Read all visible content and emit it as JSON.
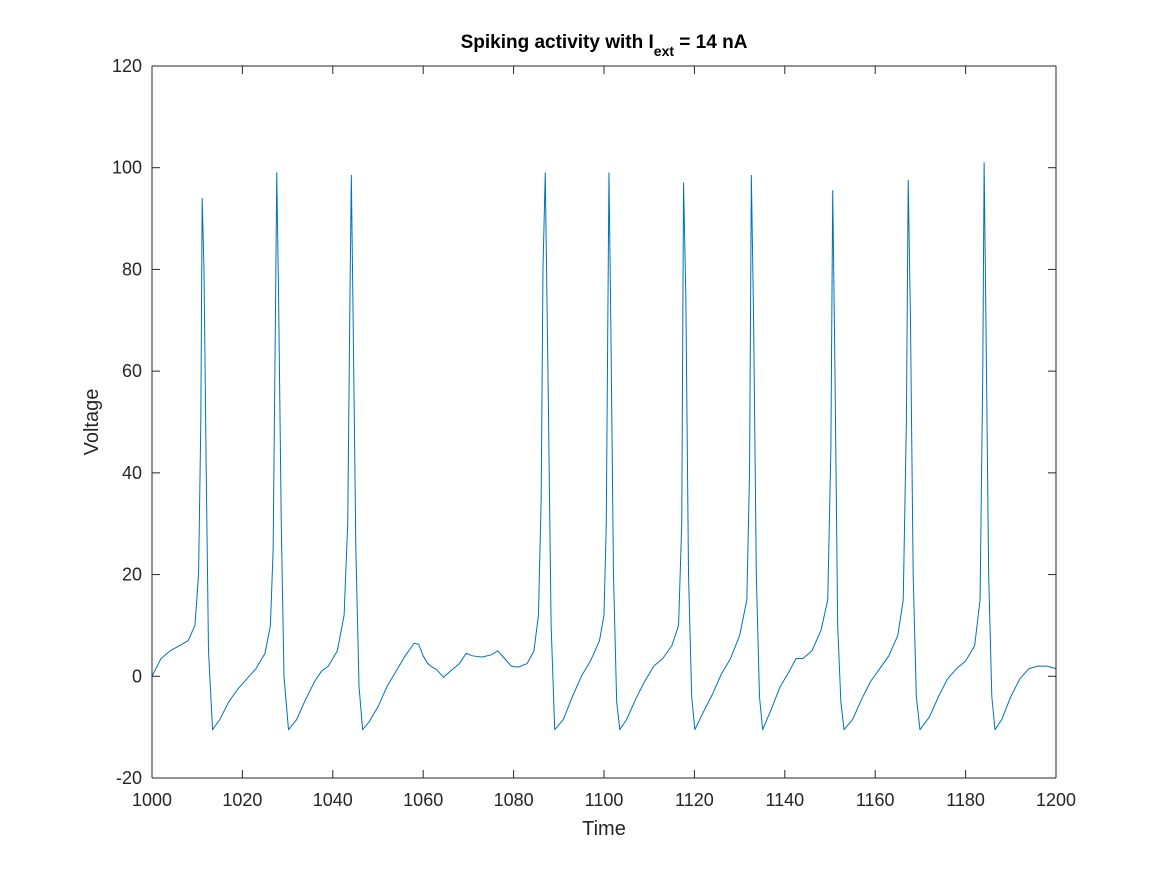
{
  "chart_data": {
    "type": "line",
    "title": {
      "prefix": "Spiking activity with I",
      "subscript": "ext",
      "suffix": " = 14 nA"
    },
    "xlabel": "Time",
    "ylabel": "Voltage",
    "xlim": [
      1000,
      1200
    ],
    "ylim": [
      -20,
      120
    ],
    "xticks": [
      1000,
      1020,
      1040,
      1060,
      1080,
      1100,
      1120,
      1140,
      1160,
      1180,
      1200
    ],
    "yticks": [
      -20,
      0,
      20,
      40,
      60,
      80,
      100,
      120
    ],
    "grid": false,
    "legend": "none",
    "line_color": "#0072BD",
    "axis_color": "#262626",
    "series": [
      {
        "x": [
          1000,
          1002,
          1004,
          1006,
          1008,
          1009.5,
          1010.3,
          1010.8,
          1011.1,
          1011.5,
          1012,
          1012.5,
          1013.4,
          1015,
          1017,
          1019,
          1021,
          1023,
          1025,
          1026.2,
          1026.8,
          1027.3,
          1027.6,
          1028,
          1028.6,
          1029.2,
          1030.2,
          1032,
          1034,
          1036,
          1037.5,
          1039,
          1041,
          1042.5,
          1043.3,
          1043.8,
          1044.1,
          1044.5,
          1045.1,
          1045.8,
          1046.6,
          1048,
          1050,
          1052,
          1054,
          1056,
          1058,
          1059,
          1060,
          1061,
          1062,
          1063,
          1064.5,
          1066,
          1068,
          1069.5,
          1071,
          1073,
          1075,
          1076.5,
          1078,
          1079.5,
          1081,
          1083,
          1084.5,
          1085.5,
          1086.1,
          1086.5,
          1087,
          1087.6,
          1088.3,
          1089.1,
          1091,
          1093,
          1095,
          1097,
          1099,
          1100,
          1100.5,
          1101.1,
          1101.5,
          1102.1,
          1102.8,
          1103.5,
          1105,
          1107,
          1109,
          1111,
          1113,
          1115,
          1116.5,
          1117.2,
          1117.6,
          1118.1,
          1118.7,
          1119.4,
          1120.1,
          1122,
          1124,
          1126,
          1128,
          1130,
          1131.6,
          1132.2,
          1132.6,
          1133.1,
          1133.7,
          1134.4,
          1135.1,
          1137,
          1139,
          1141,
          1142.5,
          1144,
          1146,
          1148,
          1149.5,
          1150.2,
          1150.6,
          1151.1,
          1151.7,
          1152.4,
          1153.1,
          1155,
          1157,
          1159,
          1161,
          1163,
          1165,
          1166.2,
          1166.9,
          1167.3,
          1167.8,
          1168.4,
          1169.1,
          1169.9,
          1172,
          1174,
          1176,
          1178,
          1180,
          1182,
          1183.2,
          1183.8,
          1184.1,
          1184.5,
          1185.1,
          1185.8,
          1186.5,
          1188,
          1190,
          1192,
          1194,
          1196,
          1198,
          1200
        ],
        "y": [
          0,
          3.5,
          5,
          6,
          7,
          10,
          20,
          50,
          94,
          80,
          40,
          5,
          -10.5,
          -8.5,
          -5,
          -2.5,
          -0.5,
          1.5,
          4.5,
          10,
          25,
          70,
          99,
          75,
          30,
          0,
          -10.5,
          -8.5,
          -4.5,
          -1,
          1,
          2,
          5,
          12,
          30,
          75,
          98.5,
          70,
          25,
          -2,
          -10.5,
          -9,
          -6,
          -2,
          1,
          4,
          6.5,
          6.3,
          4,
          2.5,
          1.8,
          1.3,
          -0.2,
          1,
          2.5,
          4.5,
          4,
          3.8,
          4.2,
          5,
          3.5,
          2,
          1.8,
          2.5,
          5,
          12,
          35,
          80,
          99,
          60,
          10,
          -10.5,
          -8.5,
          -4,
          0,
          3,
          7,
          12,
          30,
          99,
          70,
          20,
          -5,
          -10.5,
          -8.5,
          -4.5,
          -1,
          2,
          3.5,
          6,
          10,
          30,
          97,
          75,
          20,
          -4,
          -10.5,
          -7,
          -3.5,
          0.5,
          3.5,
          8,
          15,
          40,
          98.5,
          70,
          20,
          -4,
          -10.5,
          -6.5,
          -2,
          1,
          3.5,
          3.5,
          5,
          9,
          15,
          45,
          95.5,
          60,
          10,
          -5,
          -10.5,
          -8.5,
          -4.5,
          -1,
          1.5,
          4,
          8,
          15,
          50,
          97.5,
          70,
          20,
          -4,
          -10.5,
          -8,
          -4,
          -0.5,
          1.5,
          3,
          6,
          15,
          60,
          101,
          70,
          20,
          -4,
          -10.5,
          -8.5,
          -4,
          -0.5,
          1.5,
          2,
          2,
          1.5
        ]
      }
    ]
  }
}
